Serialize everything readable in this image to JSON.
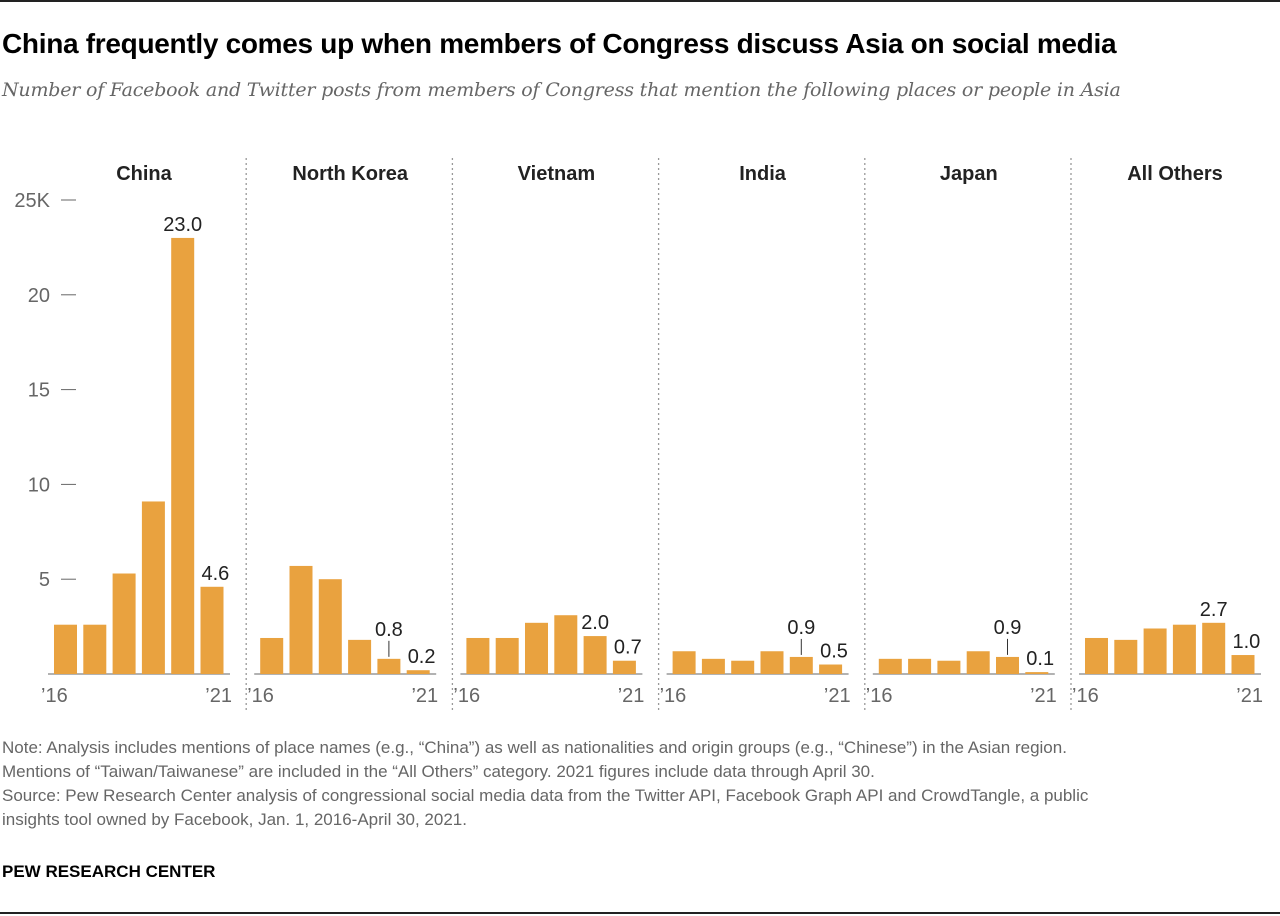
{
  "title": "China frequently comes up when members of Congress discuss Asia on social media",
  "subtitle": "Number of Facebook and Twitter posts from members of Congress that mention the following places or people in Asia",
  "notes": [
    "Note: Analysis includes mentions of place names (e.g., “China”) as well as nationalities and origin groups (e.g., “Chinese”) in the Asian region.",
    "Mentions of “Taiwan/Taiwanese” are included in the “All Others” category. 2021 figures include data through April 30.",
    "Source: Pew Research Center analysis of congressional social media data from the Twitter API, Facebook Graph API and CrowdTangle, a public",
    "insights tool owned by Facebook, Jan. 1, 2016-April 30, 2021."
  ],
  "brand": "PEW RESEARCH CENTER",
  "colors": {
    "bar": "#E9A23F",
    "axis": "#666666",
    "divider": "#999999",
    "text": "#222222"
  },
  "chart_data": {
    "type": "bar",
    "unit": "thousands of posts",
    "years": [
      "2016",
      "2017",
      "2018",
      "2019",
      "2020",
      "2021"
    ],
    "ylim": [
      0,
      25
    ],
    "yticks": [
      {
        "value": 25,
        "label": "25K"
      },
      {
        "value": 20,
        "label": "20"
      },
      {
        "value": 15,
        "label": "15"
      },
      {
        "value": 10,
        "label": "10"
      },
      {
        "value": 5,
        "label": "5"
      }
    ],
    "x_start_label": "’16",
    "x_end_label": "’21",
    "panels": [
      {
        "name": "China",
        "values": [
          2.6,
          2.6,
          5.3,
          9.1,
          23.0,
          4.6
        ],
        "labels": [
          {
            "index": 4,
            "text": "23.0"
          },
          {
            "index": 5,
            "text": "4.6"
          }
        ]
      },
      {
        "name": "North Korea",
        "values": [
          1.9,
          5.7,
          5.0,
          1.8,
          0.8,
          0.2
        ],
        "labels": [
          {
            "index": 4,
            "text": "0.8",
            "leader": true
          },
          {
            "index": 5,
            "text": "0.2"
          }
        ]
      },
      {
        "name": "Vietnam",
        "values": [
          1.9,
          1.9,
          2.7,
          3.1,
          2.0,
          0.7
        ],
        "labels": [
          {
            "index": 4,
            "text": "2.0"
          },
          {
            "index": 5,
            "text": "0.7"
          }
        ]
      },
      {
        "name": "India",
        "values": [
          1.2,
          0.8,
          0.7,
          1.2,
          0.9,
          0.5
        ],
        "labels": [
          {
            "index": 4,
            "text": "0.9",
            "leader": true
          },
          {
            "index": 5,
            "text": "0.5"
          }
        ]
      },
      {
        "name": "Japan",
        "values": [
          0.8,
          0.8,
          0.7,
          1.2,
          0.9,
          0.1
        ],
        "labels": [
          {
            "index": 4,
            "text": "0.9",
            "leader": true
          },
          {
            "index": 5,
            "text": "0.1"
          }
        ]
      },
      {
        "name": "All Others",
        "values": [
          1.9,
          1.8,
          2.4,
          2.6,
          2.7,
          1.0
        ],
        "labels": [
          {
            "index": 4,
            "text": "2.7"
          },
          {
            "index": 5,
            "text": "1.0"
          }
        ]
      }
    ]
  }
}
